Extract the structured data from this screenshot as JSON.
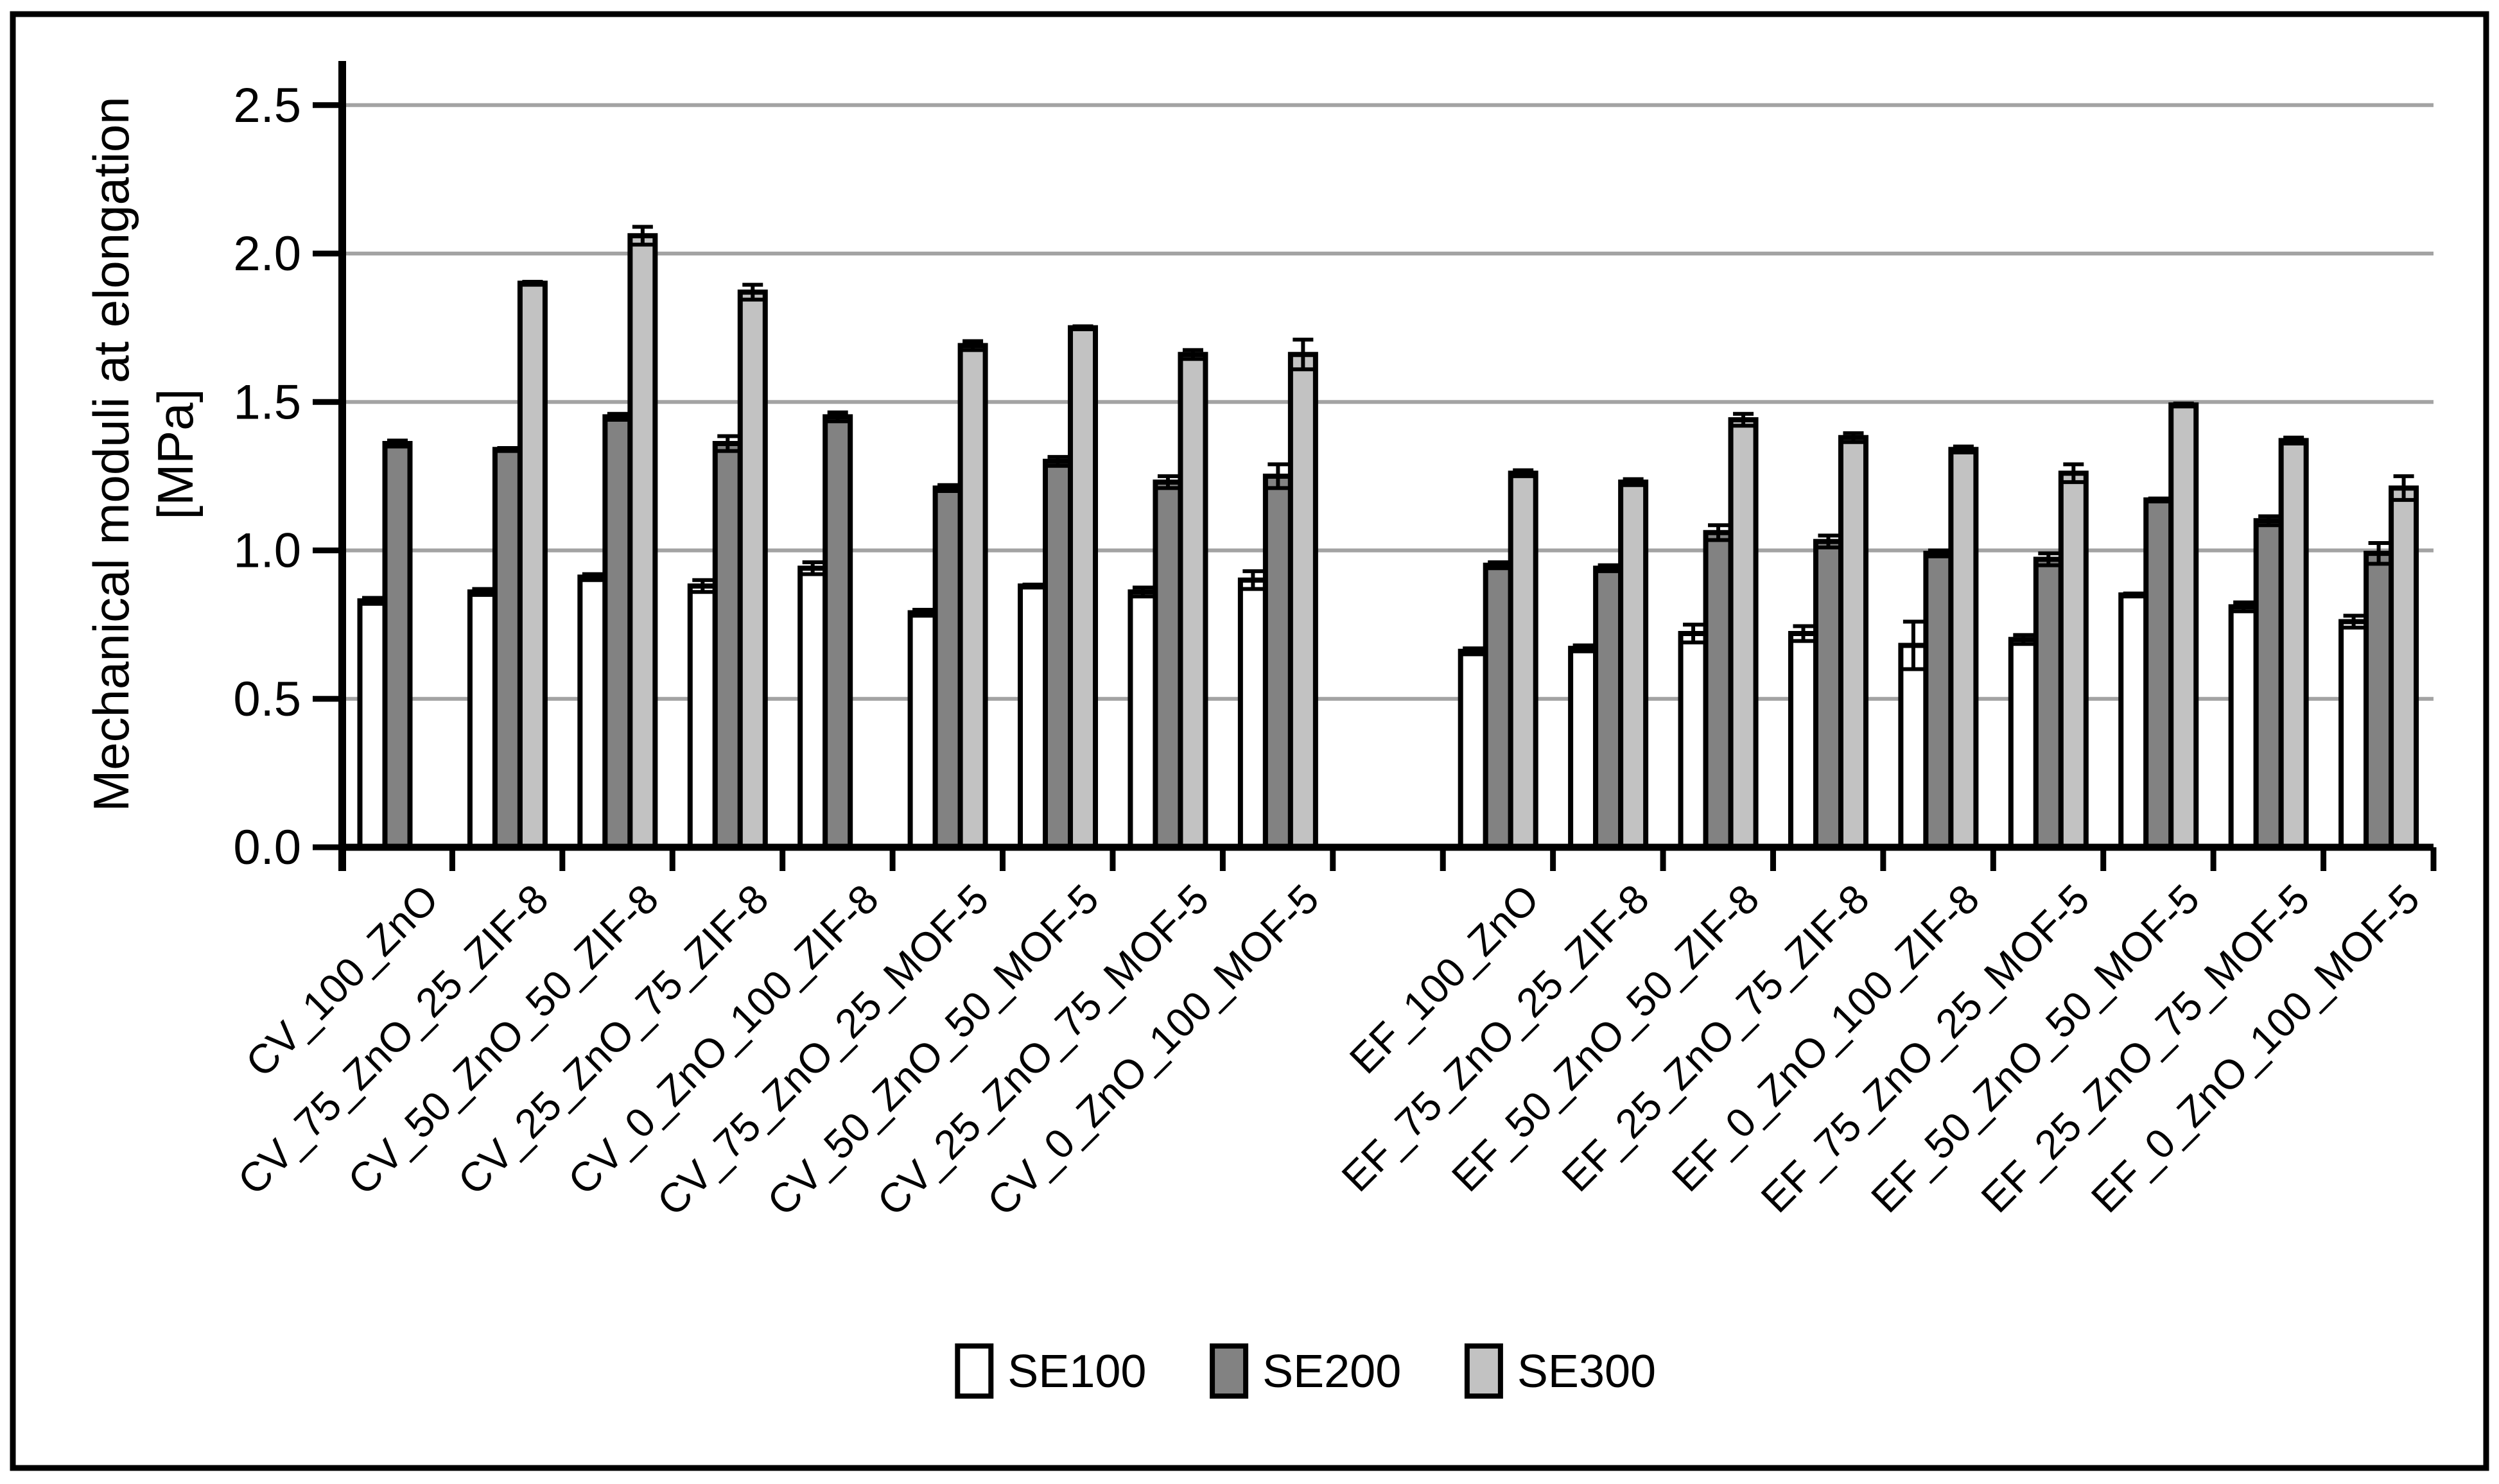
{
  "figure": {
    "background_color": "#ffffff",
    "border_color": "#000000"
  },
  "chart_data": {
    "type": "bar",
    "title": "",
    "ylabel_line1": "Mechanical moduli at elongation",
    "ylabel_line2": "[MPa]",
    "xlabel": "",
    "ylim": [
      0.0,
      2.5
    ],
    "ytick_step": 0.5,
    "ytick_labels": [
      "0.0",
      "0.5",
      "1.0",
      "1.5",
      "2.0",
      "2.5"
    ],
    "grid": true,
    "gridline_color": "#a3a3a3",
    "axis_color": "#000000",
    "legend_position": "bottom",
    "gap_after_category_index": 8,
    "categories": [
      "CV_100_ZnO",
      "CV_75_ZnO_25_ZIF-8",
      "CV_50_ZnO_50_ZIF-8",
      "CV_25_ZnO_75_ZIF-8",
      "CV_0_ZnO_100_ZIF-8",
      "CV_75_ZnO_25_MOF-5",
      "CV_50_ZnO_50_MOF-5",
      "CV_25_ZnO_75_MOF-5",
      "CV_0_ZnO_100_MOF-5",
      "EF_100_ZnO",
      "EF_75_ZnO_25_ZIF-8",
      "EF_50_ZnO_50_ZIF-8",
      "EF_25_ZnO_75_ZIF-8",
      "EF_0_ZnO_100_ZIF-8",
      "EF_75_ZnO_25_MOF-5",
      "EF_50_ZnO_50_MOF-5",
      "EF_25_ZnO_75_MOF-5",
      "EF_0_ZnO_100_MOF-5"
    ],
    "series": [
      {
        "name": "SE100",
        "color": "#ffffff",
        "values": [
          0.83,
          0.86,
          0.91,
          0.88,
          0.94,
          0.79,
          0.88,
          0.86,
          0.9,
          0.66,
          0.67,
          0.72,
          0.72,
          0.68,
          0.7,
          0.85,
          0.81,
          0.76
        ],
        "errors": [
          0.01,
          0.01,
          0.01,
          0.02,
          0.02,
          0.01,
          0.005,
          0.015,
          0.03,
          0.01,
          0.01,
          0.03,
          0.025,
          0.08,
          0.015,
          0.005,
          0.015,
          0.02
        ]
      },
      {
        "name": "SE200",
        "color": "#828282",
        "values": [
          1.36,
          1.34,
          1.45,
          1.36,
          1.45,
          1.21,
          1.3,
          1.23,
          1.25,
          0.95,
          0.94,
          1.06,
          1.03,
          0.99,
          0.97,
          1.17,
          1.1,
          0.99
        ],
        "errors": [
          0.01,
          0.005,
          0.01,
          0.025,
          0.015,
          0.01,
          0.015,
          0.02,
          0.04,
          0.01,
          0.01,
          0.025,
          0.02,
          0.01,
          0.02,
          0.005,
          0.015,
          0.035
        ]
      },
      {
        "name": "SE300",
        "color": "#c2c2c2",
        "values": [
          null,
          1.9,
          2.06,
          1.87,
          null,
          1.69,
          1.75,
          1.66,
          1.66,
          1.26,
          1.23,
          1.44,
          1.38,
          1.34,
          1.26,
          1.49,
          1.37,
          1.21
        ],
        "errors": [
          null,
          0.005,
          0.03,
          0.025,
          null,
          0.015,
          0.005,
          0.015,
          0.05,
          0.01,
          0.01,
          0.02,
          0.015,
          0.01,
          0.03,
          0.005,
          0.01,
          0.04
        ]
      }
    ],
    "bar_border_color": "#000000",
    "error_bar_color": "#000000"
  },
  "legend": {
    "items": [
      {
        "label": "SE100",
        "color": "#ffffff"
      },
      {
        "label": "SE200",
        "color": "#828282"
      },
      {
        "label": "SE300",
        "color": "#c2c2c2"
      }
    ]
  }
}
